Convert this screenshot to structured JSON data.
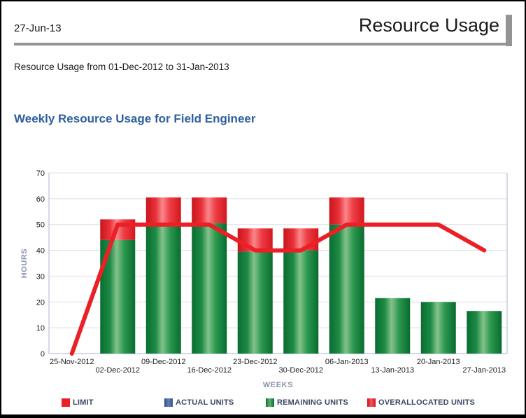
{
  "header": {
    "date": "27-Jun-13",
    "title": "Resource Usage",
    "subtitle": "Resource Usage from 01-Dec-2012 to 31-Jan-2013"
  },
  "colors": {
    "accent_rule_gray": "#949494",
    "chart_title_blue": "#2e5f9e",
    "axis_title_gray_blue": "#8b93ae",
    "gridline": "#dcdfe8",
    "axis_line": "#aab4cc",
    "limit_red": "#ec1f26"
  },
  "chart_data": {
    "type": "bar",
    "title": "Weekly Resource Usage for Field Engineer",
    "xlabel": "WEEKS",
    "ylabel": "HOURS",
    "ylim": [
      0,
      70
    ],
    "ytick_step": 10,
    "grid": true,
    "legend_position": "bottom",
    "categories": [
      "25-Nov-2012",
      "02-Dec-2012",
      "09-Dec-2012",
      "16-Dec-2012",
      "23-Dec-2012",
      "30-Dec-2012",
      "06-Jan-2013",
      "13-Jan-2013",
      "20-Jan-2013",
      "27-Jan-2013"
    ],
    "series": [
      {
        "name": "LIMIT",
        "kind": "line",
        "color": "#ec1f26",
        "values": [
          0,
          50,
          50,
          50,
          40,
          40,
          50,
          50,
          50,
          40
        ],
        "swatch_gradient": [
          "#ec1f26",
          "#ec1f26",
          "#ec1f26"
        ]
      },
      {
        "name": "ACTUAL UNITS",
        "kind": "bar",
        "color": "#3a5a96",
        "values": [
          0,
          0,
          0,
          0,
          0,
          0,
          0,
          0,
          0,
          0
        ],
        "swatch_gradient": [
          "#2e4a80",
          "#6080b4",
          "#3a5590"
        ]
      },
      {
        "name": "REMAINING UNITS",
        "kind": "bar",
        "color": "#128040",
        "values": [
          0,
          44,
          49.5,
          50.5,
          39.5,
          40,
          50,
          21.5,
          20,
          16.5
        ],
        "swatch_gradient": [
          "#0b7134",
          "#5fb16c",
          "#0a6d31"
        ]
      },
      {
        "name": "OVERALLOCATED UNITS",
        "kind": "bar",
        "color": "#ed1c24",
        "values": [
          0,
          8,
          11,
          10,
          9,
          8.5,
          10.5,
          0,
          0,
          0
        ],
        "swatch_gradient": [
          "#c8151b",
          "#f4575c",
          "#d2181f"
        ]
      }
    ]
  }
}
